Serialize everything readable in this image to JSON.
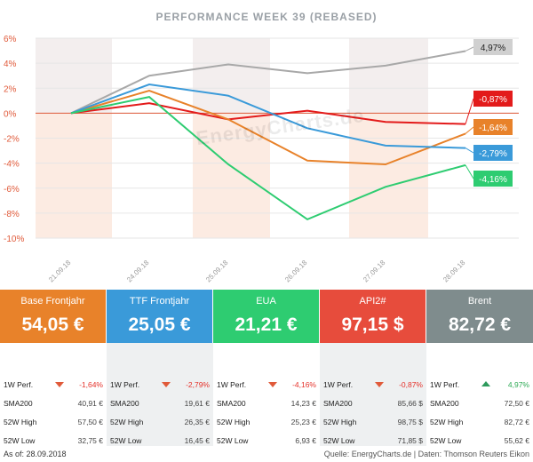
{
  "chart_data": {
    "type": "line",
    "title": "PERFORMANCE  WEEK 39 (REBASED)",
    "x": [
      "21.09.18",
      "24.09.18",
      "25.09.18",
      "26.09.18",
      "27.09.18",
      "28.09.18"
    ],
    "ylim": [
      -10,
      6
    ],
    "yticks": [
      "6%",
      "4%",
      "2%",
      "0%",
      "-2%",
      "-4%",
      "-6%",
      "-8%",
      "-10%"
    ],
    "series": [
      {
        "name": "Brent",
        "color": "#a8a8a8",
        "values": [
          0,
          3.0,
          3.9,
          3.2,
          3.8,
          4.97
        ],
        "label": "4,97%"
      },
      {
        "name": "API2#",
        "color": "#e31b1b",
        "values": [
          0,
          0.8,
          -0.5,
          0.2,
          -0.7,
          -0.87
        ],
        "label": "-0,87%"
      },
      {
        "name": "Base Frontjahr",
        "color": "#e8822a",
        "values": [
          0,
          1.8,
          -0.5,
          -3.8,
          -4.1,
          -1.64
        ],
        "label": "-1,64%"
      },
      {
        "name": "TTF Frontjahr",
        "color": "#3a9ad9",
        "values": [
          0,
          2.3,
          1.4,
          -1.2,
          -2.6,
          -2.79
        ],
        "label": "-2,79%"
      },
      {
        "name": "EUA",
        "color": "#2ecc71",
        "values": [
          0,
          1.3,
          -4.1,
          -8.5,
          -5.9,
          -4.16
        ],
        "label": "-4,16%"
      }
    ],
    "grid": true
  },
  "watermark": "EnergyCharts.de",
  "cards": [
    {
      "name": "Base Frontjahr",
      "price": "54,05 €",
      "color": "#e8822a"
    },
    {
      "name": "TTF Frontjahr",
      "price": "25,05 €",
      "color": "#3a9ad9"
    },
    {
      "name": "EUA",
      "price": "21,21 €",
      "color": "#2ecc71"
    },
    {
      "name": "API2#",
      "price": "97,15 $",
      "color": "#e74c3c"
    },
    {
      "name": "Brent",
      "price": "82,72 €",
      "color": "#7f8c8d"
    }
  ],
  "stats": [
    {
      "perf_label": "1W Perf.",
      "perf": "-1,64%",
      "dir": "down",
      "sma_label": "SMA200",
      "sma": "40,91 €",
      "high_label": "52W High",
      "high": "57,50 €",
      "low_label": "52W Low",
      "low": "32,75 €"
    },
    {
      "perf_label": "1W Perf.",
      "perf": "-2,79%",
      "dir": "down",
      "sma_label": "SMA200",
      "sma": "19,61 €",
      "high_label": "52W High",
      "high": "26,35 €",
      "low_label": "52W Low",
      "low": "16,45 €"
    },
    {
      "perf_label": "1W Perf.",
      "perf": "-4,16%",
      "dir": "down",
      "sma_label": "SMA200",
      "sma": "14,23 €",
      "high_label": "52W High",
      "high": "25,23 €",
      "low_label": "52W Low",
      "low": "6,93 €"
    },
    {
      "perf_label": "1W Perf.",
      "perf": "-0,87%",
      "dir": "down",
      "sma_label": "SMA200",
      "sma": "85,66 $",
      "high_label": "52W High",
      "high": "98,75 $",
      "low_label": "52W Low",
      "low": "71,85 $"
    },
    {
      "perf_label": "1W Perf.",
      "perf": "4,97%",
      "dir": "up",
      "sma_label": "SMA200",
      "sma": "72,50 €",
      "high_label": "52W High",
      "high": "82,72 €",
      "low_label": "52W Low",
      "low": "55,62 €"
    }
  ],
  "footer": {
    "as_of": "As of: 28.09.2018",
    "source": "Quelle: EnergyCharts.de | Daten: Thomson Reuters Eikon"
  }
}
